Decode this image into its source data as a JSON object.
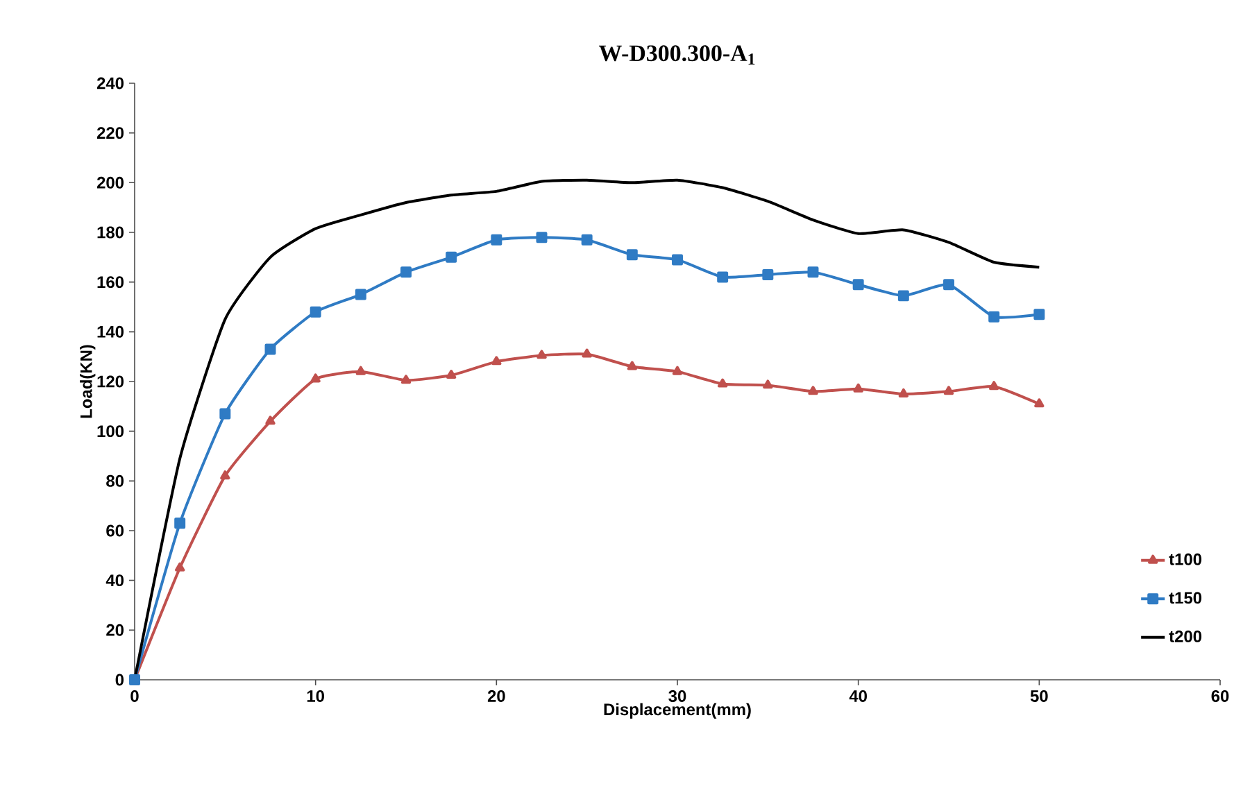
{
  "chart_data": {
    "type": "line",
    "title": "W-D300.300-A$_{1}$",
    "xlabel": "Displacement(mm)",
    "ylabel": "Load(KN)",
    "xlim": [
      0,
      60
    ],
    "xticks": [
      0,
      10,
      20,
      30,
      40,
      50,
      60
    ],
    "ylim": [
      0,
      240
    ],
    "yticks": [
      0,
      20,
      40,
      60,
      80,
      100,
      120,
      140,
      160,
      180,
      200,
      220,
      240
    ],
    "grid": false,
    "legend": "bottom right",
    "line_style": "solid",
    "x": [
      0,
      2.5,
      5,
      7.5,
      10,
      12.5,
      15,
      17.5,
      20,
      22.5,
      25,
      27.5,
      30,
      32.5,
      35,
      37.5,
      40,
      42.5,
      45,
      47.5,
      50
    ],
    "series": [
      {
        "name": "t100",
        "color": "#c0504d",
        "marker": "triangle",
        "values": [
          0,
          45,
          82,
          104,
          121,
          124,
          120.5,
          122.5,
          128,
          130.5,
          131,
          126,
          124,
          119,
          118.5,
          116,
          117,
          115,
          116,
          118,
          111
        ]
      },
      {
        "name": "t150",
        "color": "#2f7bc4",
        "marker": "square",
        "values": [
          0,
          63,
          107,
          133,
          148,
          155,
          164,
          170,
          177,
          178,
          177,
          171,
          169,
          162,
          163,
          164,
          159,
          154.5,
          159,
          146,
          147
        ]
      },
      {
        "name": "t200",
        "color": "#000000",
        "marker": "none",
        "values": [
          0,
          89,
          145,
          170,
          181.5,
          187,
          192,
          195,
          196.5,
          200.5,
          201,
          200,
          201,
          198,
          192.5,
          185,
          179.5,
          181,
          176,
          168,
          166
        ]
      }
    ]
  }
}
